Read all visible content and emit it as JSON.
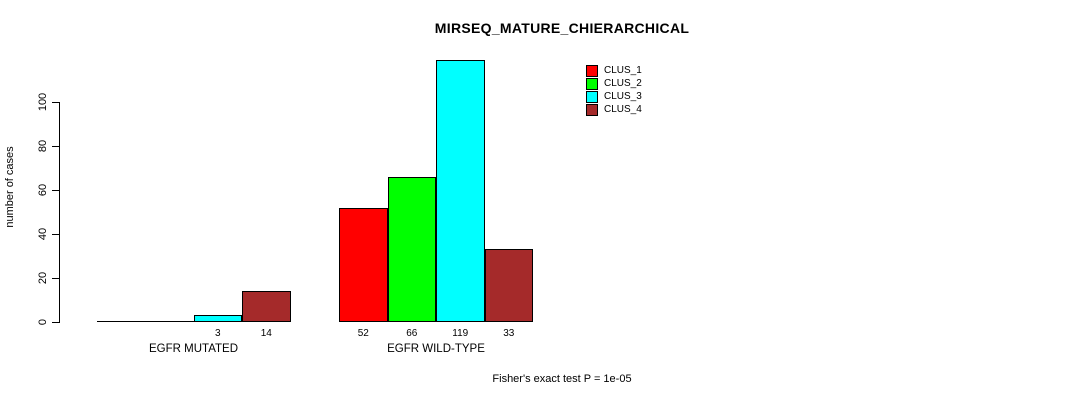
{
  "chart_data": {
    "type": "bar",
    "title": "MIRSEQ_MATURE_CHIERARCHICAL",
    "ylabel": "number of cases",
    "xlabel": "",
    "footnote": "Fisher's exact test P = 1e-05",
    "yticks": [
      0,
      20,
      40,
      60,
      80,
      100
    ],
    "ylim": [
      0,
      119
    ],
    "grid": false,
    "legend_position": "top-right",
    "value_labels": "shown under nonzero bars",
    "categories": [
      "EGFR MUTATED",
      "EGFR WILD-TYPE"
    ],
    "series": [
      {
        "name": "CLUS_1",
        "color": "#FF0000",
        "values": [
          0,
          52
        ]
      },
      {
        "name": "CLUS_2",
        "color": "#00FF00",
        "values": [
          0,
          66
        ]
      },
      {
        "name": "CLUS_3",
        "color": "#00FFFF",
        "values": [
          3,
          119
        ]
      },
      {
        "name": "CLUS_4",
        "color": "#A52A2A",
        "values": [
          14,
          33
        ]
      }
    ]
  }
}
